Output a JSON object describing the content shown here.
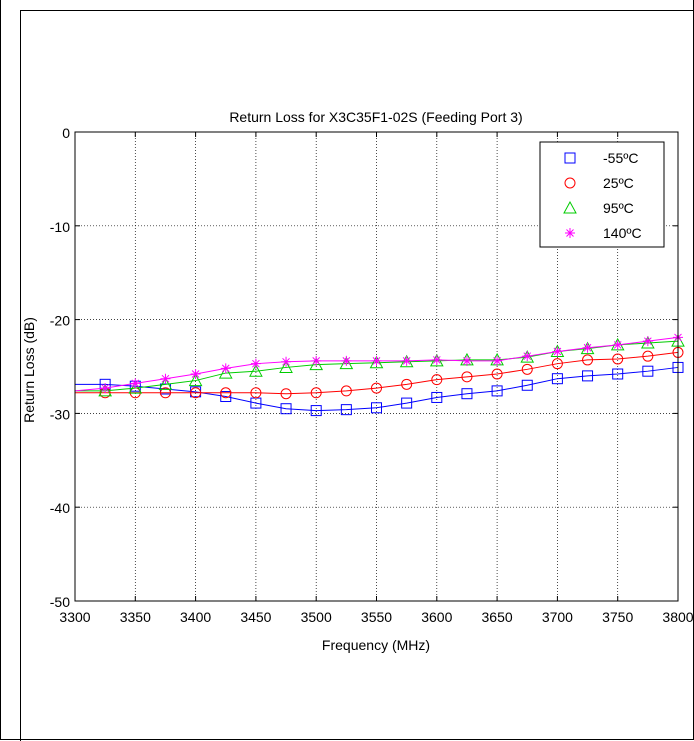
{
  "chart_data": {
    "type": "line",
    "title": "Return Loss for X3C35F1-02S (Feeding Port 3)",
    "xlabel": "Frequency (MHz)",
    "ylabel": "Return Loss (dB)",
    "xlim": [
      3300,
      3800
    ],
    "ylim": [
      -50,
      0
    ],
    "xticks": [
      3300,
      3350,
      3400,
      3450,
      3500,
      3550,
      3600,
      3650,
      3700,
      3750,
      3800
    ],
    "yticks": [
      0,
      -10,
      -20,
      -30,
      -40,
      -50
    ],
    "grid": true,
    "legend_position": "top-right",
    "x": [
      3300,
      3325,
      3350,
      3375,
      3400,
      3425,
      3450,
      3475,
      3500,
      3525,
      3550,
      3575,
      3600,
      3625,
      3650,
      3675,
      3700,
      3725,
      3750,
      3775,
      3800
    ],
    "series": [
      {
        "name": "-55ºC",
        "color": "#0000ff",
        "marker": "square",
        "values": [
          -26.9,
          -26.9,
          -27.1,
          -27.4,
          -27.7,
          -28.2,
          -28.9,
          -29.5,
          -29.7,
          -29.6,
          -29.4,
          -28.9,
          -28.3,
          -27.9,
          -27.6,
          -27.0,
          -26.3,
          -26.0,
          -25.8,
          -25.5,
          -25.1
        ]
      },
      {
        "name": "25ºC",
        "color": "#ff0000",
        "marker": "circle",
        "values": [
          -27.8,
          -27.8,
          -27.8,
          -27.8,
          -27.8,
          -27.8,
          -27.8,
          -27.9,
          -27.8,
          -27.6,
          -27.3,
          -26.9,
          -26.4,
          -26.1,
          -25.8,
          -25.3,
          -24.7,
          -24.3,
          -24.2,
          -23.9,
          -23.5
        ]
      },
      {
        "name": "95ºC",
        "color": "#00cc00",
        "marker": "triangle",
        "values": [
          -27.6,
          -27.6,
          -27.3,
          -26.9,
          -26.5,
          -25.7,
          -25.5,
          -25.1,
          -24.8,
          -24.7,
          -24.6,
          -24.5,
          -24.4,
          -24.3,
          -24.3,
          -24.0,
          -23.4,
          -23.1,
          -22.7,
          -22.5,
          -22.3
        ]
      },
      {
        "name": "140ºC",
        "color": "#ff00ff",
        "marker": "star",
        "values": [
          -27.6,
          -27.3,
          -26.8,
          -26.3,
          -25.8,
          -25.2,
          -24.7,
          -24.5,
          -24.4,
          -24.4,
          -24.4,
          -24.4,
          -24.3,
          -24.4,
          -24.4,
          -23.9,
          -23.4,
          -23.0,
          -22.7,
          -22.3,
          -21.9
        ]
      }
    ]
  }
}
